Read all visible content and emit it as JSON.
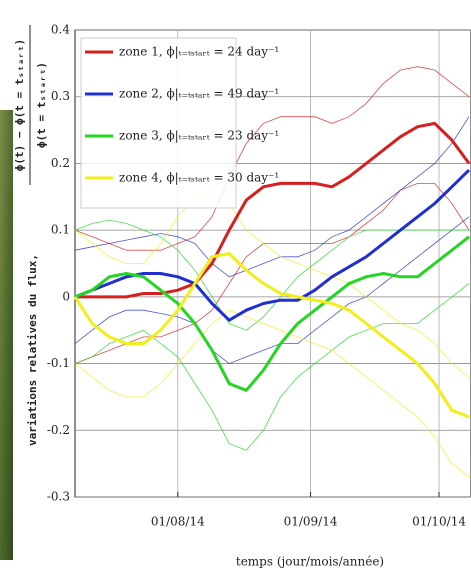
{
  "chart_data": {
    "type": "line",
    "xlabel": "temps (jour/mois/année)",
    "ylabel": "variations relatives du flux,",
    "ylabel_numerator": "ϕ(t) − ϕ(t = tₛₜₐᵣₜ)",
    "ylabel_denominator": "ϕ(t = tₛₜₐᵣₜ)",
    "x": [
      "2014-07-08",
      "2014-07-12",
      "2014-07-16",
      "2014-07-20",
      "2014-07-24",
      "2014-07-28",
      "2014-08-01",
      "2014-08-05",
      "2014-08-09",
      "2014-08-13",
      "2014-08-17",
      "2014-08-21",
      "2014-08-25",
      "2014-08-29",
      "2014-09-02",
      "2014-09-06",
      "2014-09-10",
      "2014-09-14",
      "2014-09-18",
      "2014-09-22",
      "2014-09-26",
      "2014-09-30",
      "2014-10-04",
      "2014-10-08"
    ],
    "xlim": [
      "2014-07-08",
      "2014-10-08"
    ],
    "xticks": [
      {
        "value": "2014-08-01",
        "label": "01/08/14"
      },
      {
        "value": "2014-09-01",
        "label": "01/09/14"
      },
      {
        "value": "2014-10-01",
        "label": "01/10/14"
      }
    ],
    "ylim": [
      -0.3,
      0.4
    ],
    "yticks": [
      0.4,
      0.3,
      0.2,
      0.1,
      0,
      -0.1,
      -0.2,
      -0.3
    ],
    "grid": true,
    "legend_loc": "upper left",
    "series": [
      {
        "name": "zone 1, ϕ|ₜ₌ₜₛₜₐᵣₜ = 24 day⁻¹",
        "color": "#d61f1f",
        "values": [
          0,
          0,
          0,
          0,
          0.005,
          0.005,
          0.01,
          0.02,
          0.05,
          0.1,
          0.145,
          0.165,
          0.17,
          0.17,
          0.17,
          0.165,
          0.18,
          0.2,
          0.22,
          0.24,
          0.255,
          0.26,
          0.235,
          0.2
        ],
        "upper": [
          0.1,
          0.09,
          0.08,
          0.07,
          0.07,
          0.07,
          0.08,
          0.09,
          0.12,
          0.18,
          0.23,
          0.26,
          0.27,
          0.27,
          0.27,
          0.26,
          0.27,
          0.29,
          0.32,
          0.34,
          0.345,
          0.34,
          0.32,
          0.3
        ],
        "lower": [
          -0.1,
          -0.09,
          -0.08,
          -0.07,
          -0.06,
          -0.06,
          -0.05,
          -0.04,
          -0.02,
          0.02,
          0.06,
          0.08,
          0.08,
          0.08,
          0.08,
          0.08,
          0.09,
          0.11,
          0.13,
          0.16,
          0.17,
          0.17,
          0.14,
          0.1
        ]
      },
      {
        "name": "zone 2, ϕ|ₜ₌ₜₛₜₐᵣₜ = 49 day⁻¹",
        "color": "#1f2fd0",
        "values": [
          0,
          0.01,
          0.02,
          0.03,
          0.035,
          0.035,
          0.03,
          0.02,
          -0.01,
          -0.035,
          -0.02,
          -0.01,
          -0.005,
          -0.005,
          0.01,
          0.03,
          0.045,
          0.06,
          0.08,
          0.1,
          0.12,
          0.14,
          0.165,
          0.19
        ],
        "upper": [
          0.07,
          0.075,
          0.08,
          0.085,
          0.09,
          0.095,
          0.09,
          0.08,
          0.05,
          0.03,
          0.04,
          0.05,
          0.06,
          0.06,
          0.07,
          0.09,
          0.1,
          0.12,
          0.14,
          0.16,
          0.18,
          0.2,
          0.23,
          0.27
        ],
        "lower": [
          -0.07,
          -0.05,
          -0.03,
          -0.02,
          -0.02,
          -0.025,
          -0.03,
          -0.04,
          -0.08,
          -0.1,
          -0.09,
          -0.08,
          -0.07,
          -0.07,
          -0.05,
          -0.03,
          -0.01,
          0,
          0.02,
          0.04,
          0.06,
          0.08,
          0.1,
          0.12
        ]
      },
      {
        "name": "zone 3, ϕ|ₜ₌ₜₛₜₐᵣₜ = 23 day⁻¹",
        "color": "#22d622",
        "values": [
          0,
          0.01,
          0.03,
          0.035,
          0.03,
          0.01,
          -0.01,
          -0.04,
          -0.08,
          -0.13,
          -0.14,
          -0.11,
          -0.07,
          -0.04,
          -0.02,
          0,
          0.02,
          0.03,
          0.035,
          0.03,
          0.03,
          0.05,
          0.07,
          0.09
        ],
        "upper": [
          0.1,
          0.11,
          0.115,
          0.11,
          0.1,
          0.09,
          0.07,
          0.04,
          0,
          -0.04,
          -0.05,
          -0.03,
          0,
          0.03,
          0.05,
          0.07,
          0.09,
          0.1,
          0.1,
          0.1,
          0.1,
          0.1,
          0.1,
          0.1
        ],
        "lower": [
          -0.1,
          -0.09,
          -0.07,
          -0.06,
          -0.05,
          -0.07,
          -0.09,
          -0.13,
          -0.17,
          -0.22,
          -0.23,
          -0.2,
          -0.15,
          -0.12,
          -0.1,
          -0.08,
          -0.06,
          -0.05,
          -0.04,
          -0.04,
          -0.04,
          -0.02,
          0,
          0.02
        ]
      },
      {
        "name": "zone 4, ϕ|ₜ₌ₜₛₜₐᵣₜ = 30 day⁻¹",
        "color": "#f2ee1a",
        "values": [
          0,
          -0.04,
          -0.06,
          -0.07,
          -0.07,
          -0.05,
          -0.02,
          0.02,
          0.06,
          0.065,
          0.04,
          0.02,
          0.005,
          0,
          -0.005,
          -0.01,
          -0.02,
          -0.04,
          -0.06,
          -0.08,
          -0.1,
          -0.13,
          -0.17,
          -0.18
        ],
        "upper": [
          0.1,
          0.08,
          0.06,
          0.05,
          0.05,
          0.08,
          0.12,
          0.15,
          0.16,
          0.14,
          0.1,
          0.08,
          0.06,
          0.05,
          0.04,
          0.03,
          0.02,
          0,
          -0.02,
          -0.04,
          -0.05,
          -0.07,
          -0.1,
          -0.12
        ],
        "lower": [
          -0.1,
          -0.12,
          -0.14,
          -0.15,
          -0.15,
          -0.13,
          -0.1,
          -0.07,
          -0.04,
          -0.02,
          -0.03,
          -0.04,
          -0.05,
          -0.06,
          -0.07,
          -0.08,
          -0.1,
          -0.12,
          -0.14,
          -0.16,
          -0.18,
          -0.21,
          -0.25,
          -0.27
        ]
      }
    ]
  }
}
